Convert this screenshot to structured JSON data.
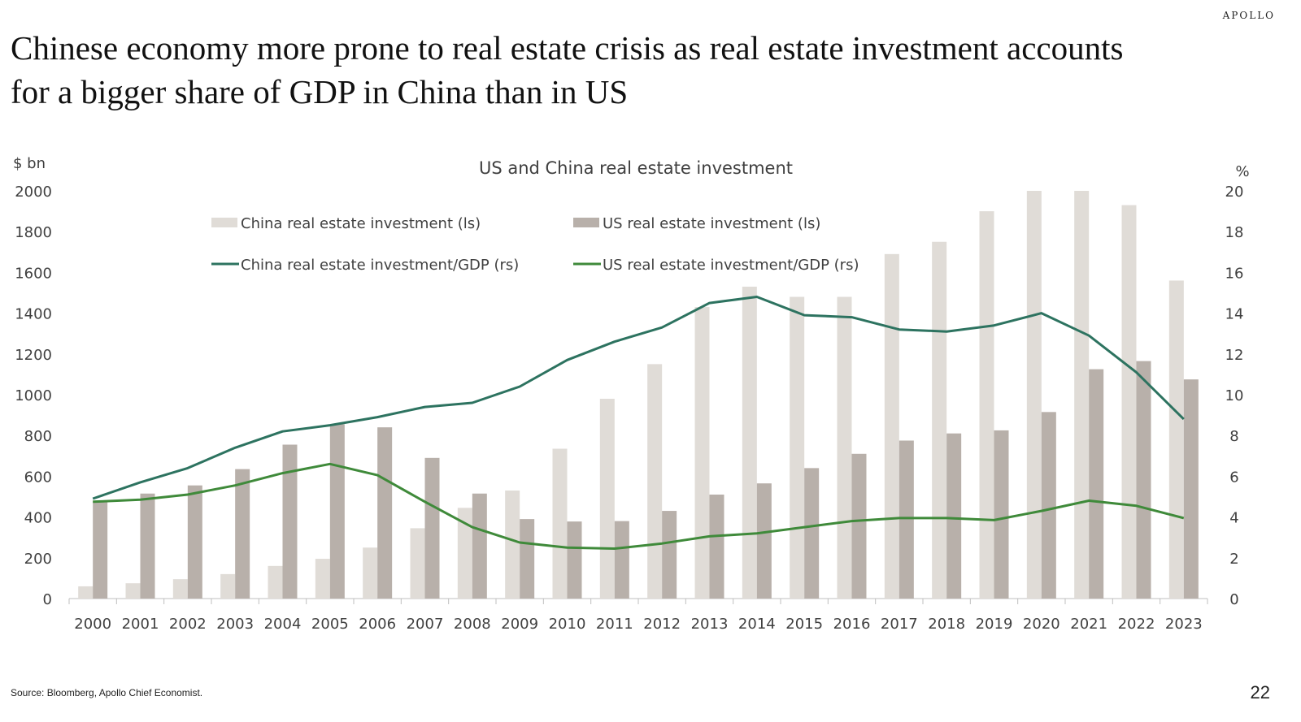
{
  "brand": "APOLLO",
  "headline": "Chinese economy more prone to real estate crisis as real estate investment accounts for a bigger share of GDP in China than in US",
  "source": "Source: Bloomberg, Apollo Chief Economist.",
  "page_number": "22",
  "colors": {
    "china_bar": "#e0dcd7",
    "us_bar": "#b8b0aa",
    "china_line": "#2d7360",
    "us_line": "#3f8a3a",
    "axis": "#bfbfbf"
  },
  "chart_data": {
    "type": "bar",
    "title": "US and China real estate investment",
    "left_axis_label": "$ bn",
    "right_axis_label": "%",
    "categories": [
      "2000",
      "2001",
      "2002",
      "2003",
      "2004",
      "2005",
      "2006",
      "2007",
      "2008",
      "2009",
      "2010",
      "2011",
      "2012",
      "2013",
      "2014",
      "2015",
      "2016",
      "2017",
      "2018",
      "2019",
      "2020",
      "2021",
      "2022",
      "2023"
    ],
    "ylim_left": [
      0,
      2000
    ],
    "ylim_right": [
      0,
      20
    ],
    "left_ticks": [
      0,
      200,
      400,
      600,
      800,
      1000,
      1200,
      1400,
      1600,
      1800,
      2000
    ],
    "right_ticks": [
      0,
      2,
      4,
      6,
      8,
      10,
      12,
      14,
      16,
      18,
      20
    ],
    "legend_placement": "top-left, inside plot",
    "series": [
      {
        "name": "China real estate investment (ls)",
        "kind": "bar",
        "axis": "left",
        "values": [
          60,
          75,
          95,
          120,
          160,
          195,
          250,
          345,
          445,
          530,
          735,
          980,
          1150,
          1430,
          1530,
          1480,
          1480,
          1690,
          1750,
          1900,
          2000,
          2000,
          1930,
          1560
        ]
      },
      {
        "name": "US real estate investment (ls)",
        "kind": "bar",
        "axis": "left",
        "values": [
          475,
          515,
          555,
          635,
          755,
          855,
          840,
          690,
          515,
          390,
          378,
          380,
          430,
          510,
          565,
          640,
          710,
          775,
          810,
          825,
          915,
          1125,
          1165,
          1075
        ]
      },
      {
        "name": "China real estate investment/GDP (rs)",
        "kind": "line",
        "axis": "right",
        "values": [
          4.9,
          5.7,
          6.4,
          7.4,
          8.2,
          8.5,
          8.9,
          9.4,
          9.6,
          10.4,
          11.7,
          12.6,
          13.3,
          14.5,
          14.8,
          13.9,
          13.8,
          13.2,
          13.1,
          13.4,
          14.0,
          12.9,
          11.1,
          8.8
        ]
      },
      {
        "name": "US real estate investment/GDP (rs)",
        "kind": "line",
        "axis": "right",
        "values": [
          4.75,
          4.85,
          5.1,
          5.55,
          6.15,
          6.6,
          6.05,
          4.75,
          3.5,
          2.75,
          2.5,
          2.45,
          2.7,
          3.05,
          3.2,
          3.5,
          3.8,
          3.95,
          3.95,
          3.85,
          4.3,
          4.8,
          4.55,
          3.95
        ]
      }
    ]
  }
}
